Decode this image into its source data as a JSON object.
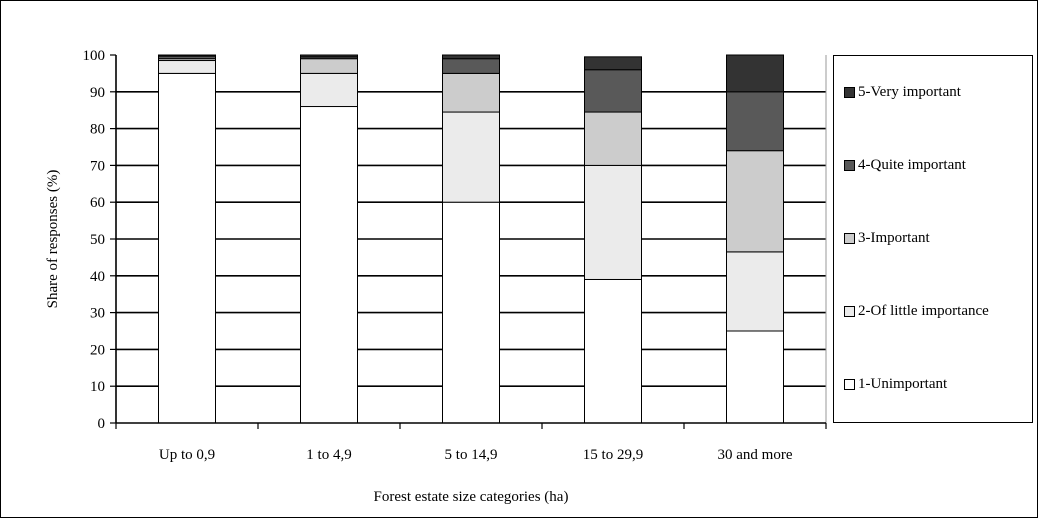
{
  "chart_data": {
    "type": "bar",
    "stacked": true,
    "title": "",
    "xlabel": "Forest estate size categories (ha)",
    "ylabel": "Share of responses (%)",
    "ylim": [
      0,
      100
    ],
    "yticks": [
      "0",
      "10",
      "20",
      "30",
      "40",
      "50",
      "60",
      "70",
      "80",
      "90",
      "100"
    ],
    "grid": true,
    "legend_position": "right",
    "categories": [
      "Up to 0,9",
      "1 to 4,9",
      "5 to 14,9",
      "15 to 29,9",
      "30 and more"
    ],
    "series": [
      {
        "name": "1-Unimportant",
        "color": "#ffffff",
        "values": [
          95,
          86,
          60,
          39,
          25
        ]
      },
      {
        "name": "2-Of little importance",
        "color": "#ebebeb",
        "values": [
          3.5,
          9,
          24.5,
          31,
          21.5
        ]
      },
      {
        "name": "3-Important",
        "color": "#cccccc",
        "values": [
          0.5,
          4,
          10.5,
          14.5,
          27.5
        ]
      },
      {
        "name": "4-Quite important",
        "color": "#595959",
        "values": [
          0.7,
          0.5,
          4,
          11.5,
          16
        ]
      },
      {
        "name": "5-Very important",
        "color": "#333333",
        "values": [
          0.3,
          0.5,
          1,
          3.5,
          10
        ]
      }
    ]
  }
}
